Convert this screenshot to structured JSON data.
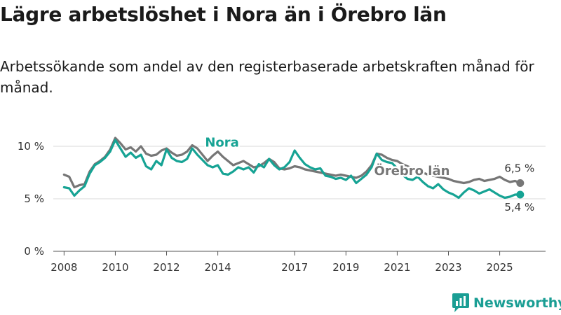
{
  "page": {
    "title": "Lägre arbetslöshet i Nora än i Örebro län",
    "subtitle": "Arbetssökande som andel av den registerbaserade arbetskraften månad för månad."
  },
  "brand": {
    "name": "Newsworthy",
    "icon": "newsworthy-logo-icon",
    "color": "#1a9e94"
  },
  "chart_data": {
    "type": "line",
    "title": "Lägre arbetslöshet i Nora än i Örebro län",
    "subtitle": "Arbetssökande som andel av den registerbaserade arbetskraften månad för månad.",
    "xlabel": "",
    "ylabel": "",
    "xlim": [
      2007.58,
      2026.79
    ],
    "ylim": [
      0,
      10
    ],
    "yticks": [
      {
        "value": 0,
        "label": "0 %"
      },
      {
        "value": 5,
        "label": "5 %"
      },
      {
        "value": 10,
        "label": "10 %"
      }
    ],
    "xticks": [
      {
        "value": 2008,
        "label": "2008"
      },
      {
        "value": 2010,
        "label": "2010"
      },
      {
        "value": 2012,
        "label": "2012"
      },
      {
        "value": 2014,
        "label": "2014"
      },
      {
        "value": 2017,
        "label": "2017"
      },
      {
        "value": 2019,
        "label": "2019"
      },
      {
        "value": 2021,
        "label": "2021"
      },
      {
        "value": 2023,
        "label": "2023"
      },
      {
        "value": 2025,
        "label": "2025"
      }
    ],
    "grid": true,
    "series": [
      {
        "name": "Örebro län",
        "color": "#767676",
        "end_label": "6,5 %",
        "x": [
          2008.0,
          2008.2,
          2008.4,
          2008.6,
          2008.8,
          2009.0,
          2009.2,
          2009.4,
          2009.6,
          2009.8,
          2010.0,
          2010.2,
          2010.4,
          2010.6,
          2010.8,
          2011.0,
          2011.2,
          2011.4,
          2011.6,
          2011.8,
          2012.0,
          2012.2,
          2012.4,
          2012.6,
          2012.8,
          2013.0,
          2013.2,
          2013.4,
          2013.6,
          2013.8,
          2014.0,
          2014.2,
          2014.4,
          2014.6,
          2014.8,
          2015.0,
          2015.2,
          2015.4,
          2015.6,
          2015.8,
          2016.0,
          2016.2,
          2016.4,
          2016.6,
          2016.8,
          2017.0,
          2017.2,
          2017.4,
          2017.6,
          2017.8,
          2018.0,
          2018.2,
          2018.4,
          2018.6,
          2018.8,
          2019.0,
          2019.2,
          2019.4,
          2019.6,
          2019.8,
          2020.0,
          2020.2,
          2020.4,
          2020.6,
          2020.8,
          2021.0,
          2021.2,
          2021.4,
          2021.6,
          2021.8,
          2022.0,
          2022.2,
          2022.4,
          2022.6,
          2022.8,
          2023.0,
          2023.2,
          2023.4,
          2023.6,
          2023.8,
          2024.0,
          2024.2,
          2024.4,
          2024.6,
          2024.8,
          2025.0,
          2025.2,
          2025.4,
          2025.6,
          2025.8
        ],
        "values": [
          7.3,
          7.1,
          6.1,
          6.3,
          6.4,
          7.6,
          8.3,
          8.6,
          9.0,
          9.7,
          10.8,
          10.3,
          9.7,
          9.9,
          9.5,
          10.0,
          9.3,
          9.1,
          9.2,
          9.6,
          9.8,
          9.4,
          9.1,
          9.2,
          9.5,
          10.1,
          9.8,
          9.2,
          8.6,
          9.1,
          9.5,
          9.0,
          8.6,
          8.2,
          8.4,
          8.6,
          8.3,
          8.0,
          8.1,
          8.4,
          8.8,
          8.5,
          7.9,
          7.8,
          7.9,
          8.1,
          8.0,
          7.8,
          7.7,
          7.6,
          7.5,
          7.4,
          7.3,
          7.2,
          7.3,
          7.2,
          7.1,
          7.0,
          7.2,
          7.6,
          8.2,
          9.3,
          9.2,
          8.9,
          8.7,
          8.6,
          8.3,
          8.1,
          7.9,
          7.6,
          7.5,
          7.3,
          7.2,
          7.1,
          7.0,
          6.9,
          6.7,
          6.6,
          6.5,
          6.6,
          6.8,
          6.9,
          6.7,
          6.8,
          6.9,
          7.1,
          6.8,
          6.6,
          6.7,
          6.5
        ]
      },
      {
        "name": "Nora",
        "color": "#16a394",
        "end_label": "5,4 %",
        "x": [
          2008.0,
          2008.2,
          2008.4,
          2008.6,
          2008.8,
          2009.0,
          2009.2,
          2009.4,
          2009.6,
          2009.8,
          2010.0,
          2010.2,
          2010.4,
          2010.6,
          2010.8,
          2011.0,
          2011.2,
          2011.4,
          2011.6,
          2011.8,
          2012.0,
          2012.2,
          2012.4,
          2012.6,
          2012.8,
          2013.0,
          2013.2,
          2013.4,
          2013.6,
          2013.8,
          2014.0,
          2014.2,
          2014.4,
          2014.6,
          2014.8,
          2015.0,
          2015.2,
          2015.4,
          2015.6,
          2015.8,
          2016.0,
          2016.2,
          2016.4,
          2016.6,
          2016.8,
          2017.0,
          2017.2,
          2017.4,
          2017.6,
          2017.8,
          2018.0,
          2018.2,
          2018.4,
          2018.6,
          2018.8,
          2019.0,
          2019.2,
          2019.4,
          2019.6,
          2019.8,
          2020.0,
          2020.2,
          2020.4,
          2020.6,
          2020.8,
          2021.0,
          2021.2,
          2021.4,
          2021.6,
          2021.8,
          2022.0,
          2022.2,
          2022.4,
          2022.6,
          2022.8,
          2023.0,
          2023.2,
          2023.4,
          2023.6,
          2023.8,
          2024.0,
          2024.2,
          2024.4,
          2024.6,
          2024.8,
          2025.0,
          2025.2,
          2025.4,
          2025.6,
          2025.8
        ],
        "values": [
          6.1,
          6.0,
          5.3,
          5.8,
          6.2,
          7.4,
          8.2,
          8.5,
          8.9,
          9.5,
          10.6,
          9.8,
          9.0,
          9.4,
          8.9,
          9.2,
          8.1,
          7.8,
          8.6,
          8.2,
          9.7,
          8.9,
          8.6,
          8.5,
          8.8,
          9.8,
          9.2,
          8.7,
          8.2,
          8.0,
          8.2,
          7.4,
          7.3,
          7.6,
          8.0,
          7.8,
          8.0,
          7.5,
          8.3,
          8.0,
          8.8,
          8.2,
          7.8,
          8.0,
          8.5,
          9.6,
          8.9,
          8.3,
          8.0,
          7.8,
          7.9,
          7.2,
          7.1,
          6.9,
          7.0,
          6.8,
          7.2,
          6.5,
          6.9,
          7.3,
          8.0,
          9.3,
          8.7,
          8.5,
          8.4,
          7.9,
          7.3,
          6.9,
          6.8,
          7.1,
          6.6,
          6.2,
          6.0,
          6.4,
          5.9,
          5.6,
          5.4,
          5.1,
          5.6,
          6.0,
          5.8,
          5.5,
          5.7,
          5.9,
          5.6,
          5.3,
          5.1,
          5.2,
          5.4,
          5.4
        ]
      }
    ],
    "annotations": [
      {
        "series": "Nora",
        "text": "Nora",
        "x": 2013.5
      },
      {
        "series": "Örebro län",
        "text": "Örebro län",
        "x": 2020.1
      }
    ]
  }
}
